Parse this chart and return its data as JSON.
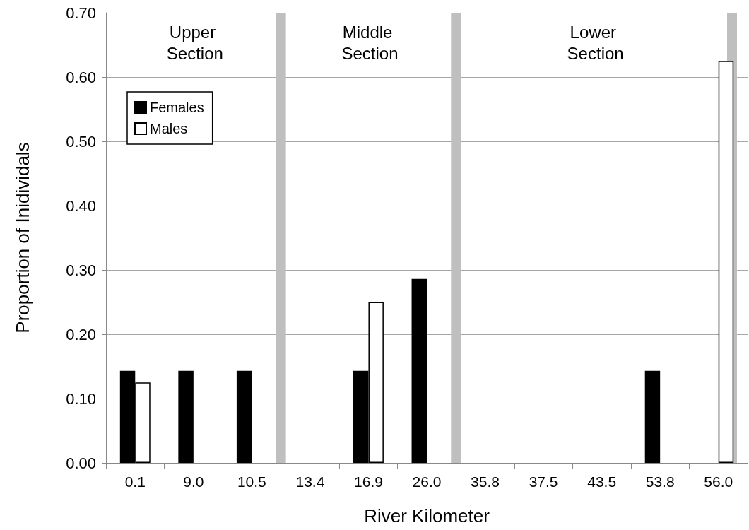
{
  "chart_data": {
    "type": "bar",
    "xlabel": "River Kilometer",
    "ylabel": "Proportion of Inidividals",
    "categories": [
      "0.1",
      "9.0",
      "10.5",
      "13.4",
      "16.9",
      "26.0",
      "35.8",
      "37.5",
      "43.5",
      "53.8",
      "56.0"
    ],
    "series": [
      {
        "name": "Females",
        "color": "#000000",
        "values": [
          0.143,
          0.143,
          0.143,
          0,
          0.143,
          0.286,
          0,
          0,
          0,
          0.143,
          0
        ]
      },
      {
        "name": "Males",
        "color": "#ffffff",
        "values": [
          0.125,
          0,
          0,
          0,
          0.25,
          0,
          0,
          0,
          0,
          0,
          0.625
        ]
      }
    ],
    "ylim": [
      0,
      0.7
    ],
    "yticks": [
      {
        "value": 0,
        "label": "0.00"
      },
      {
        "value": 0.1,
        "label": "0.10"
      },
      {
        "value": 0.2,
        "label": "0.20"
      },
      {
        "value": 0.3,
        "label": "0.30"
      },
      {
        "value": 0.4,
        "label": "0.40"
      },
      {
        "value": 0.5,
        "label": "0.50"
      },
      {
        "value": 0.6,
        "label": "0.60"
      },
      {
        "value": 0.7,
        "label": "0.70"
      }
    ],
    "annotations": [
      "Upper Section",
      "Middle Section",
      "Lower Section"
    ],
    "grid": "y",
    "legend": "top left"
  }
}
